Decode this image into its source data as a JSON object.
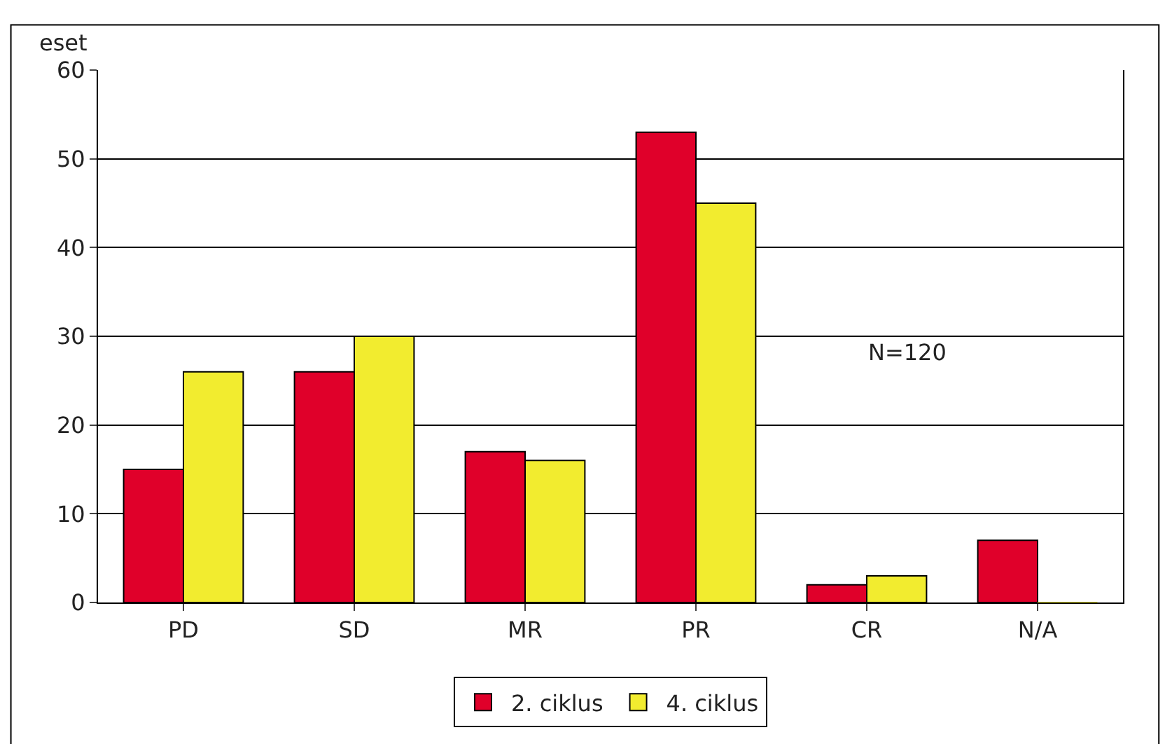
{
  "chart_data": {
    "type": "bar",
    "ylabel": "eset",
    "categories": [
      "PD",
      "SD",
      "MR",
      "PR",
      "CR",
      "N/A"
    ],
    "series": [
      {
        "name": "2. ciklus",
        "color": "#e0002a",
        "values": [
          15,
          26,
          17,
          53,
          2,
          7
        ]
      },
      {
        "name": "4. ciklus",
        "color": "#f2ec2f",
        "values": [
          26,
          30,
          16,
          45,
          3,
          0
        ]
      }
    ],
    "ylim": [
      0,
      60
    ],
    "yticks": [
      0,
      10,
      20,
      30,
      40,
      50,
      60
    ],
    "grid": "y",
    "legend": "bottom",
    "annotations": [
      "N=120"
    ]
  }
}
